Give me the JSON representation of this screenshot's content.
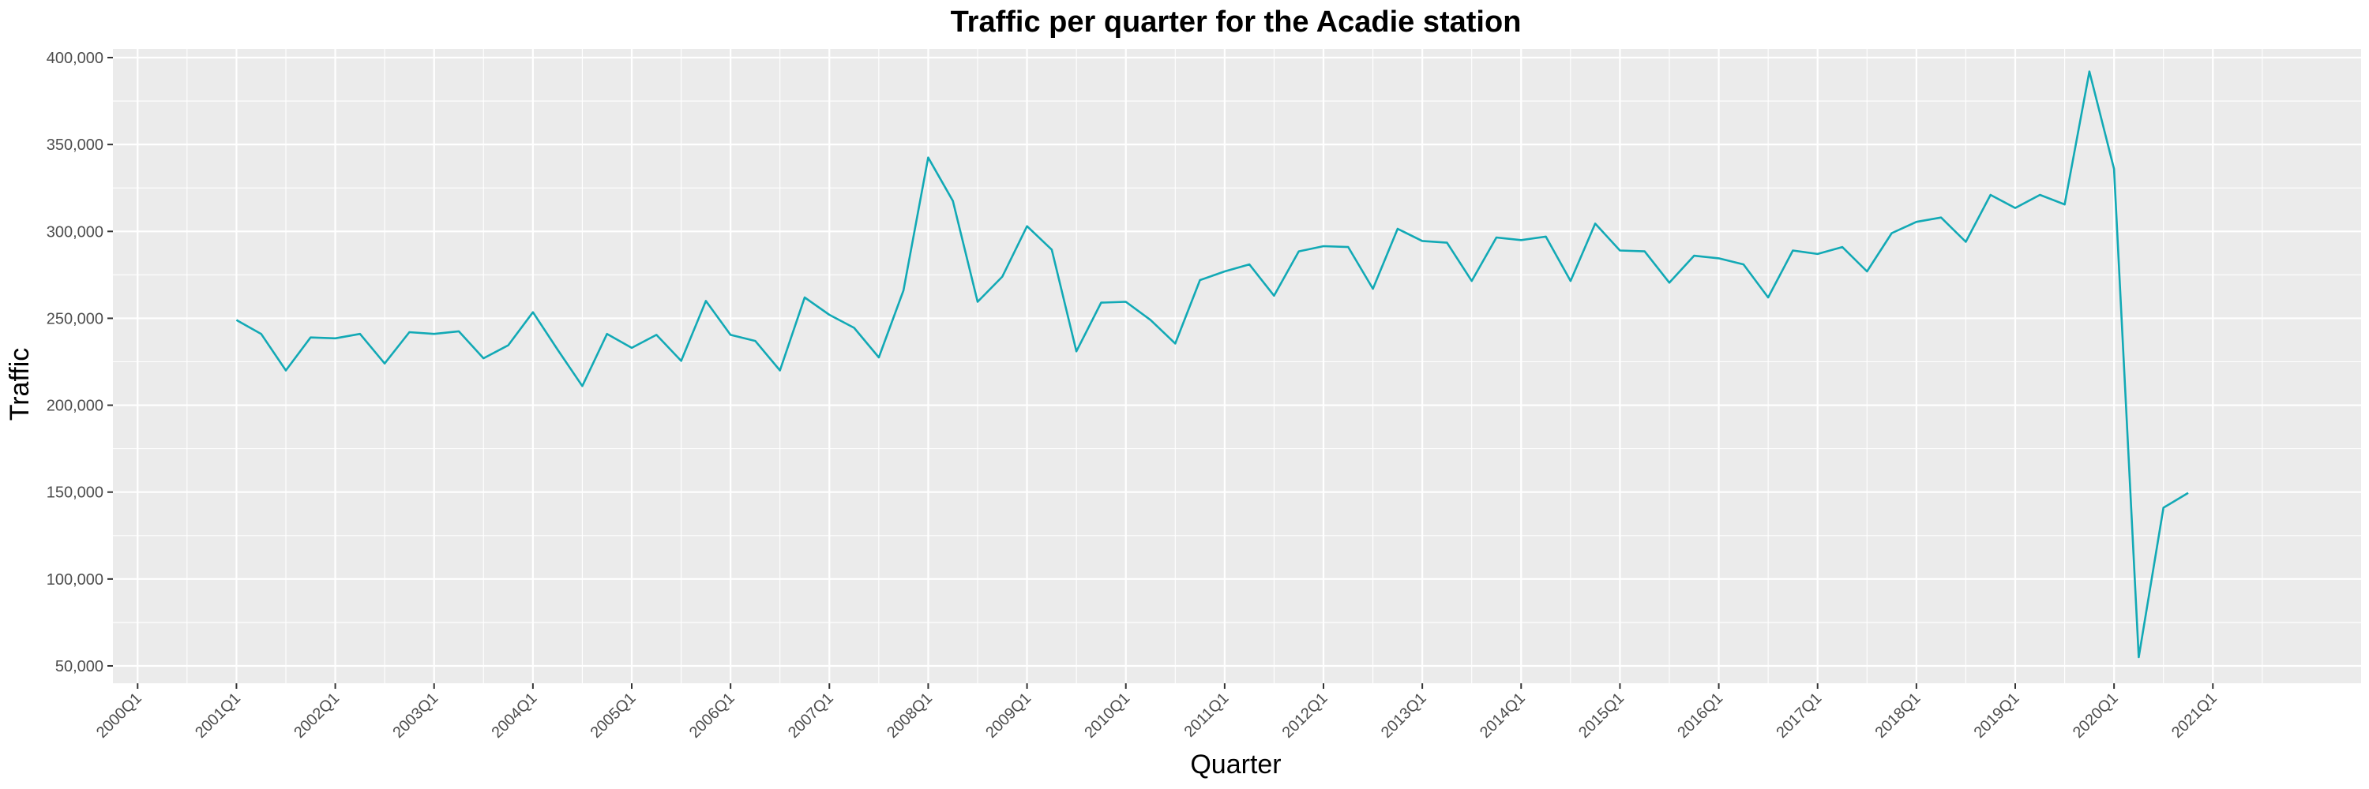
{
  "chart_data": {
    "type": "line",
    "title": "Traffic per quarter for the Acadie station",
    "xlabel": "Quarter",
    "ylabel": "Traffic",
    "x_ticks": [
      "2000Q1",
      "2001Q1",
      "2002Q1",
      "2003Q1",
      "2004Q1",
      "2005Q1",
      "2006Q1",
      "2007Q1",
      "2008Q1",
      "2009Q1",
      "2010Q1",
      "2011Q1",
      "2012Q1",
      "2013Q1",
      "2014Q1",
      "2015Q1",
      "2016Q1",
      "2017Q1",
      "2018Q1",
      "2019Q1",
      "2020Q1",
      "2021Q1"
    ],
    "y_ticks": [
      "50,000",
      "100,000",
      "150,000",
      "200,000",
      "250,000",
      "300,000",
      "350,000",
      "400,000"
    ],
    "y_tick_values": [
      50000,
      100000,
      150000,
      200000,
      250000,
      300000,
      350000,
      400000
    ],
    "xlim": [
      "1999Q4",
      "2022Q3"
    ],
    "ylim": [
      40000,
      405000
    ],
    "grid": true,
    "colors": {
      "panel": "#ebebeb",
      "grid": "#ffffff",
      "line": "#12a9b5"
    },
    "series": [
      {
        "x": [
          "2001Q1",
          "2001Q2",
          "2001Q3",
          "2001Q4",
          "2002Q1",
          "2002Q2",
          "2002Q3",
          "2002Q4",
          "2003Q1",
          "2003Q2",
          "2003Q3",
          "2003Q4",
          "2004Q1",
          "2004Q2",
          "2004Q3",
          "2004Q4",
          "2005Q1",
          "2005Q2",
          "2005Q3",
          "2005Q4",
          "2006Q1",
          "2006Q2",
          "2006Q3",
          "2006Q4",
          "2007Q1",
          "2007Q2",
          "2007Q3",
          "2007Q4",
          "2008Q1",
          "2008Q2",
          "2008Q3",
          "2008Q4",
          "2009Q1",
          "2009Q2",
          "2009Q3",
          "2009Q4",
          "2010Q1",
          "2010Q2",
          "2010Q3",
          "2010Q4",
          "2011Q1",
          "2011Q2",
          "2011Q3",
          "2011Q4",
          "2012Q1",
          "2012Q2",
          "2012Q3",
          "2012Q4",
          "2013Q1",
          "2013Q2",
          "2013Q3",
          "2013Q4",
          "2014Q1",
          "2014Q2",
          "2014Q3",
          "2014Q4",
          "2015Q1",
          "2015Q2",
          "2015Q3",
          "2015Q4",
          "2016Q1",
          "2016Q2",
          "2016Q3",
          "2016Q4",
          "2017Q1",
          "2017Q2",
          "2017Q3",
          "2017Q4",
          "2018Q1",
          "2018Q2",
          "2018Q3",
          "2018Q4",
          "2019Q1",
          "2019Q2",
          "2019Q3",
          "2019Q4",
          "2020Q1",
          "2020Q2",
          "2020Q3",
          "2020Q4"
        ],
        "values": [
          249000,
          241000,
          220000,
          239000,
          238500,
          241000,
          224000,
          242000,
          241000,
          242500,
          227000,
          234500,
          253500,
          232000,
          211000,
          241000,
          233000,
          240500,
          225500,
          260000,
          240500,
          237000,
          220000,
          262000,
          252000,
          244500,
          227500,
          266000,
          342500,
          317500,
          259500,
          274000,
          303000,
          289500,
          231000,
          259000,
          259500,
          249000,
          235500,
          272000,
          277000,
          281000,
          263000,
          288500,
          291500,
          291000,
          267000,
          301500,
          294500,
          293500,
          271500,
          296500,
          295000,
          297000,
          271500,
          304500,
          289000,
          288500,
          270500,
          286000,
          284500,
          281000,
          262000,
          289000,
          287000,
          291000,
          277000,
          299000,
          305500,
          308000,
          294000,
          321000,
          313500,
          321000,
          315500,
          392000,
          336000,
          55000,
          141000,
          149500
        ]
      }
    ]
  }
}
